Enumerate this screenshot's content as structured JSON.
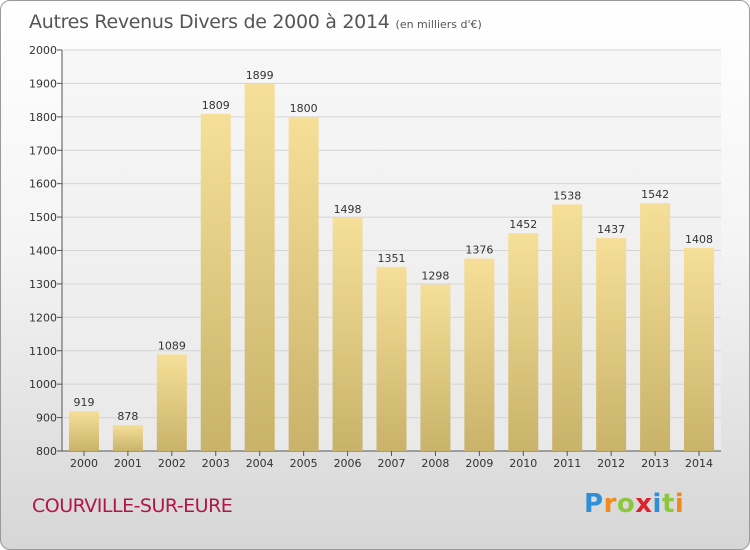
{
  "title": "Autres Revenus Divers de 2000 à 2014",
  "subtitle": "(en milliers d'€)",
  "footer": {
    "location": "COURVILLE-SUR-EURE",
    "brand": "Proxiti",
    "brand_colors": [
      "#2e8fd8",
      "#f08a1c",
      "#8dc63f",
      "#d9232d",
      "#2e8fd8",
      "#8dc63f",
      "#f08a1c"
    ]
  },
  "chart_data": {
    "type": "bar",
    "title": "Autres Revenus Divers de 2000 à 2014",
    "subtitle": "(en milliers d'€)",
    "xlabel": "",
    "ylabel": "",
    "categories": [
      "2000",
      "2001",
      "2002",
      "2003",
      "2004",
      "2005",
      "2006",
      "2007",
      "2008",
      "2009",
      "2010",
      "2011",
      "2012",
      "2013",
      "2014"
    ],
    "values": [
      919,
      878,
      1089,
      1809,
      1899,
      1800,
      1498,
      1351,
      1298,
      1376,
      1452,
      1538,
      1437,
      1542,
      1408
    ],
    "data_labels": [
      "919",
      "878",
      "1089",
      "1809",
      "1899",
      "1800",
      "1498",
      "1351",
      "1298",
      "1376",
      "1452",
      "1538",
      "1437",
      "1542",
      "1408"
    ],
    "ylim": [
      800,
      2000
    ],
    "yticks": [
      800,
      900,
      1000,
      1100,
      1200,
      1300,
      1400,
      1500,
      1600,
      1700,
      1800,
      1900,
      2000
    ],
    "grid": true,
    "legend": "none",
    "bar_color": "#d9c07a"
  }
}
